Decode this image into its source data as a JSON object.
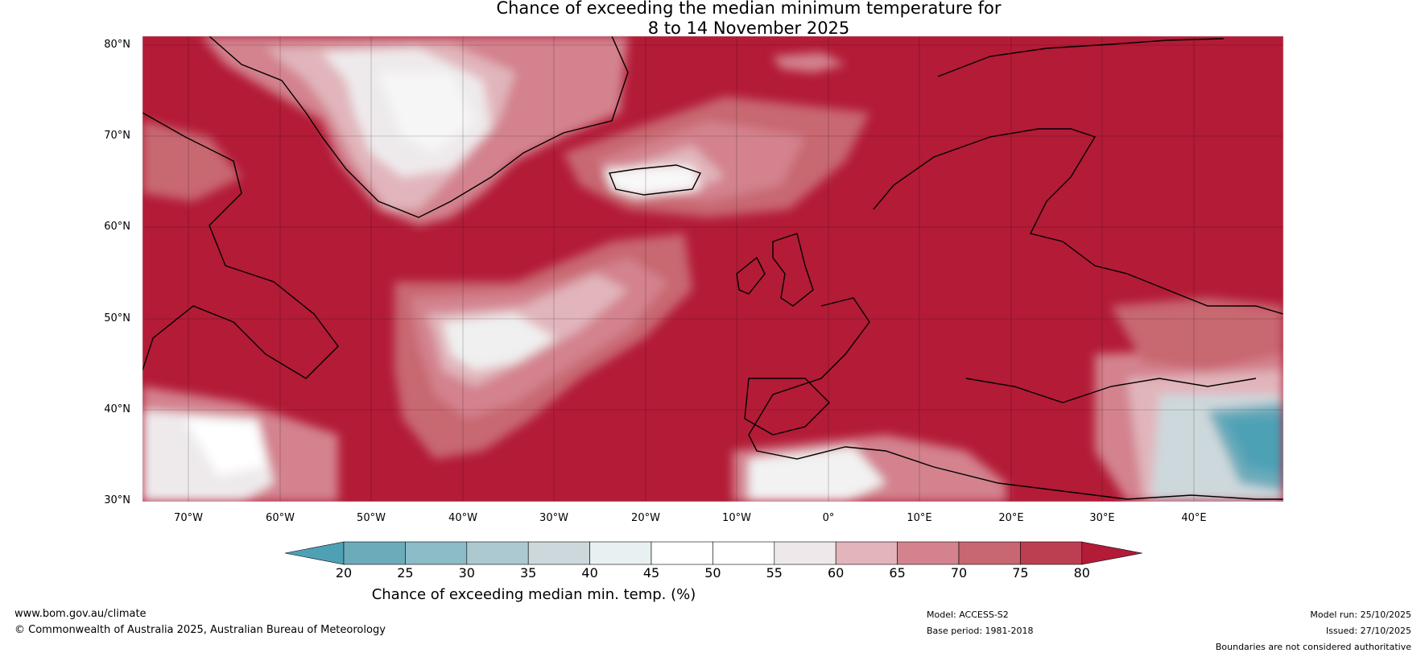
{
  "title": {
    "line1": "Chance of exceeding the median minimum temperature for",
    "line2": "8 to 14 November 2025"
  },
  "map": {
    "lat_labels": [
      "80°N",
      "70°N",
      "60°N",
      "50°N",
      "40°N",
      "30°N"
    ],
    "lon_labels": [
      "70°W",
      "60°W",
      "50°W",
      "40°W",
      "30°W",
      "20°W",
      "10°W",
      "0°",
      "10°E",
      "20°E",
      "30°E",
      "40°E"
    ],
    "lat_range": [
      30,
      81
    ],
    "lon_range": [
      -75,
      50
    ]
  },
  "colorbar": {
    "title": "Chance of exceeding median min. temp. (%)",
    "ticks": [
      "20",
      "25",
      "30",
      "35",
      "40",
      "45",
      "50",
      "55",
      "60",
      "65",
      "70",
      "75",
      "80"
    ],
    "colors": [
      "#4ea1b5",
      "#6cabba",
      "#8bbcc8",
      "#acc9d1",
      "#cdd8dc",
      "#e8f0f1",
      "#ffffff",
      "#ffffff",
      "#eee8ea",
      "#e1b5bb",
      "#d3828e",
      "#c86771",
      "#bc3f51",
      "#b31b37"
    ]
  },
  "footer": {
    "website": "www.bom.gov.au/climate",
    "copyright": "© Commonwealth of Australia 2025, Australian Bureau of Meteorology",
    "model": "Model: ACCESS-S2",
    "base_period": "Base period: 1981-2018",
    "model_run": "Model run: 25/10/2025",
    "issued": "Issued: 27/10/2025",
    "disclaimer": "Boundaries are not considered authoritative"
  }
}
